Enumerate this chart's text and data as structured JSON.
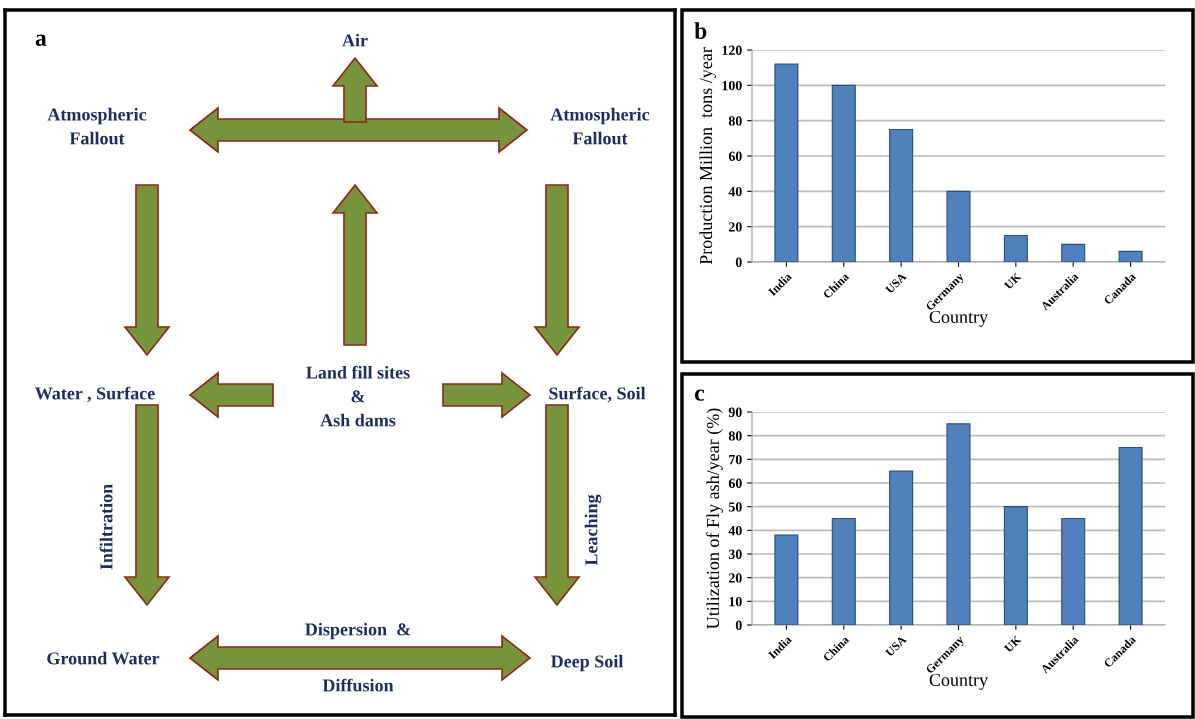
{
  "chart_data": [
    {
      "type": "other",
      "title": "a",
      "annotations": [
        "Air",
        "Atmospheric\nFallout",
        "Atmospheric\nFallout",
        "Water , Surface",
        "Land fill sites\n&\nAsh dams",
        "Surface, Soil",
        "Infiltration",
        "Leaching",
        "Ground Water",
        "Dispersion  &",
        "Diffusion",
        "Deep Soil"
      ]
    },
    {
      "type": "bar",
      "title": "b",
      "categories": [
        "India",
        "China",
        "USA",
        "Germany",
        "UK",
        "Australia",
        "Canada"
      ],
      "values": [
        112,
        100,
        75,
        40,
        15,
        10,
        6
      ],
      "color": "#4f81bd",
      "ylim": [
        0,
        120
      ],
      "yticks": [
        0,
        20,
        40,
        60,
        80,
        100,
        120
      ],
      "grid": "y",
      "xlabel": "Country",
      "ylabel": "Production Million  tons /year"
    },
    {
      "type": "bar",
      "title": "c",
      "categories": [
        "India",
        "China",
        "USA",
        "Germany",
        "UK",
        "Australia",
        "Canada"
      ],
      "values": [
        38,
        45,
        65,
        85,
        50,
        45,
        75
      ],
      "color": "#4f81bd",
      "ylim": [
        0,
        90
      ],
      "yticks": [
        0,
        10,
        20,
        30,
        40,
        50,
        60,
        70,
        80,
        90
      ],
      "grid": "y",
      "xlabel": "Country",
      "ylabel": "Utilization of Fly ash/year (%)"
    }
  ]
}
